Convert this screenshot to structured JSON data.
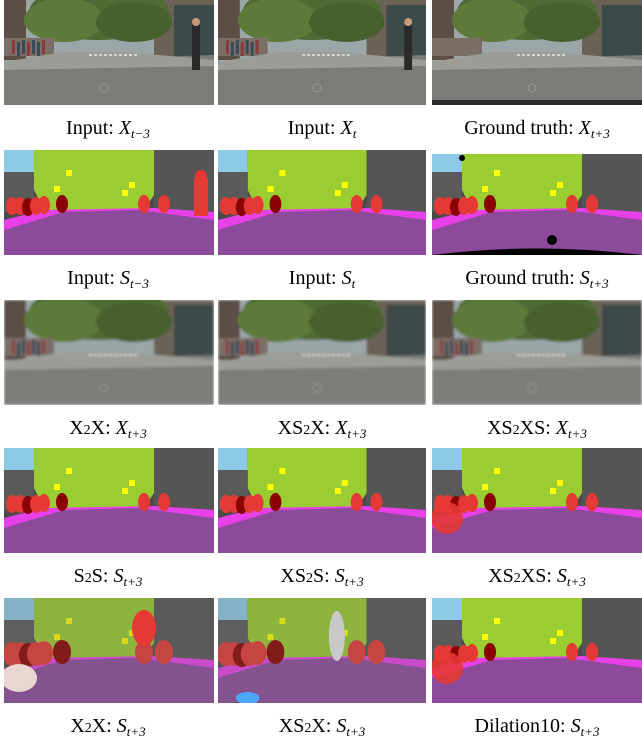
{
  "figure": {
    "rows": [
      {
        "kind": "rgb",
        "panels": [
          {
            "variant": "rgb-input",
            "label": "Input",
            "symbol": "X",
            "subscript": "t−3"
          },
          {
            "variant": "rgb-input",
            "label": "Input",
            "symbol": "X",
            "subscript": "t"
          },
          {
            "variant": "rgb-gt",
            "label": "Ground truth",
            "symbol": "X",
            "subscript": "t+3"
          }
        ]
      },
      {
        "kind": "seg",
        "panels": [
          {
            "variant": "seg-input-a",
            "label": "Input",
            "symbol": "S",
            "subscript": "t−3"
          },
          {
            "variant": "seg-input-b",
            "label": "Input",
            "symbol": "S",
            "subscript": "t"
          },
          {
            "variant": "seg-gt",
            "label": "Ground truth",
            "symbol": "S",
            "subscript": "t+3"
          }
        ]
      },
      {
        "kind": "rgb",
        "panels": [
          {
            "variant": "rgb-blur",
            "label": "X2X",
            "symbol": "X",
            "subscript": "t+3"
          },
          {
            "variant": "rgb-blur",
            "label": "XS2X",
            "symbol": "X",
            "subscript": "t+3"
          },
          {
            "variant": "rgb-blur",
            "label": "XS2XS",
            "symbol": "X",
            "subscript": "t+3"
          }
        ]
      },
      {
        "kind": "seg",
        "panels": [
          {
            "variant": "seg-pred",
            "label": "S2S",
            "symbol": "S",
            "subscript": "t+3"
          },
          {
            "variant": "seg-pred",
            "label": "XS2S",
            "symbol": "S",
            "subscript": "t+3"
          },
          {
            "variant": "seg-pred-c",
            "label": "XS2XS",
            "symbol": "S",
            "subscript": "t+3"
          }
        ]
      },
      {
        "kind": "seg",
        "panels": [
          {
            "variant": "seg-noisy-a",
            "label": "X2X",
            "symbol": "S",
            "subscript": "t+3"
          },
          {
            "variant": "seg-noisy-b",
            "label": "XS2X",
            "symbol": "S",
            "subscript": "t+3"
          },
          {
            "variant": "seg-dilation",
            "label": "Dilation10",
            "symbol": "S",
            "subscript": "t+3"
          }
        ]
      }
    ],
    "colors": {
      "sky": "#8ecae6",
      "vegetation": "#9acd32",
      "building": "#4a4a4a",
      "road": "#8c4a9a",
      "sidewalk": "#e840e8",
      "person": "#e53935",
      "rider": "#8b0000",
      "sign": "#ffff00",
      "car": "#000000",
      "rgb_road": "#7b7b78",
      "rgb_tree": "#4f6b34",
      "rgb_building": "#6b6256"
    }
  }
}
